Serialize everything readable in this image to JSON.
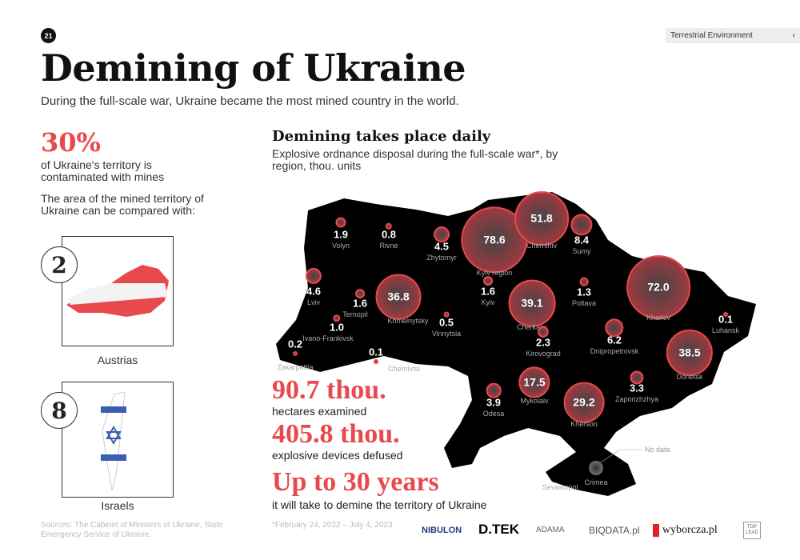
{
  "page_number": "21",
  "section": {
    "label": "Terrestrial Environment",
    "back_icon": "chevron-left-icon"
  },
  "title": "Demining of Ukraine",
  "subtitle": "During the full-scale war, Ukraine became the most mined country in the world.",
  "left": {
    "percent": "30%",
    "percent_text": "of Ukraine's territory is contaminated with mines",
    "compare_text": "The area of the mined territory of Ukraine can be compared with:",
    "comparisons": [
      {
        "count": "8",
        "label": "Israels"
      },
      {
        "count": "2",
        "label": "Austrias"
      }
    ]
  },
  "map": {
    "title": "Demining takes place daily",
    "subtitle": "Explosive ordnance disposal during the full-scale war*, by region, thou. units",
    "no_data_label": "No data",
    "sevastopol": "Sevastopol",
    "accent": "#e8494d",
    "regions": [
      {
        "name": "Volyn",
        "value": "1.9"
      },
      {
        "name": "Rivne",
        "value": "0.8"
      },
      {
        "name": "Zhytomyr",
        "value": "4.5"
      },
      {
        "name": "Kyiv region",
        "value": "78.6"
      },
      {
        "name": "Chernihiv",
        "value": "51.8"
      },
      {
        "name": "Sumy",
        "value": "8.4"
      },
      {
        "name": "Lviv",
        "value": "4.6"
      },
      {
        "name": "Ternopil",
        "value": "1.6"
      },
      {
        "name": "Khmelnytsky",
        "value": "36.8"
      },
      {
        "name": "Vinnytsia",
        "value": "0.5"
      },
      {
        "name": "Kyiv",
        "value": "1.6"
      },
      {
        "name": "Cherkasy",
        "value": "39.1"
      },
      {
        "name": "Poltava",
        "value": "1.3"
      },
      {
        "name": "Kharkiv",
        "value": "72.0"
      },
      {
        "name": "Luhansk",
        "value": "0.1"
      },
      {
        "name": "Ivano-Frankivsk",
        "value": "1.0"
      },
      {
        "name": "Zakarpattia",
        "value": "0.2"
      },
      {
        "name": "Chernivtsi",
        "value": "0.1"
      },
      {
        "name": "Kirovograd",
        "value": "2.3"
      },
      {
        "name": "Dnipropetrovsk",
        "value": "6.2"
      },
      {
        "name": "Donetsk",
        "value": "38.5"
      },
      {
        "name": "Odesa",
        "value": "3.9"
      },
      {
        "name": "Mykolaiv",
        "value": "17.5"
      },
      {
        "name": "Kherson",
        "value": "29.2"
      },
      {
        "name": "Zaporizhzhya",
        "value": "3.3"
      },
      {
        "name": "Crimea",
        "value": ""
      }
    ]
  },
  "stats": [
    {
      "value": "90.7 thou.",
      "label": "hectares examined"
    },
    {
      "value": "405.8 thou.",
      "label": "explosive devices defused"
    },
    {
      "value": "Up to 30 years",
      "label": "it will take to demine the territory of Ukraine"
    }
  ],
  "footer": {
    "sources": "Sources: The Cabinet of Ministers of Ukraine, State Emergency Service of Ukraine.",
    "period": "*February 24, 2022 – July 4, 2023",
    "logos": [
      "NIBULON",
      "D.TEK",
      "ADAMA",
      "BIQDATA.pl",
      "wyborcza.pl",
      "TOP LEAD"
    ]
  }
}
